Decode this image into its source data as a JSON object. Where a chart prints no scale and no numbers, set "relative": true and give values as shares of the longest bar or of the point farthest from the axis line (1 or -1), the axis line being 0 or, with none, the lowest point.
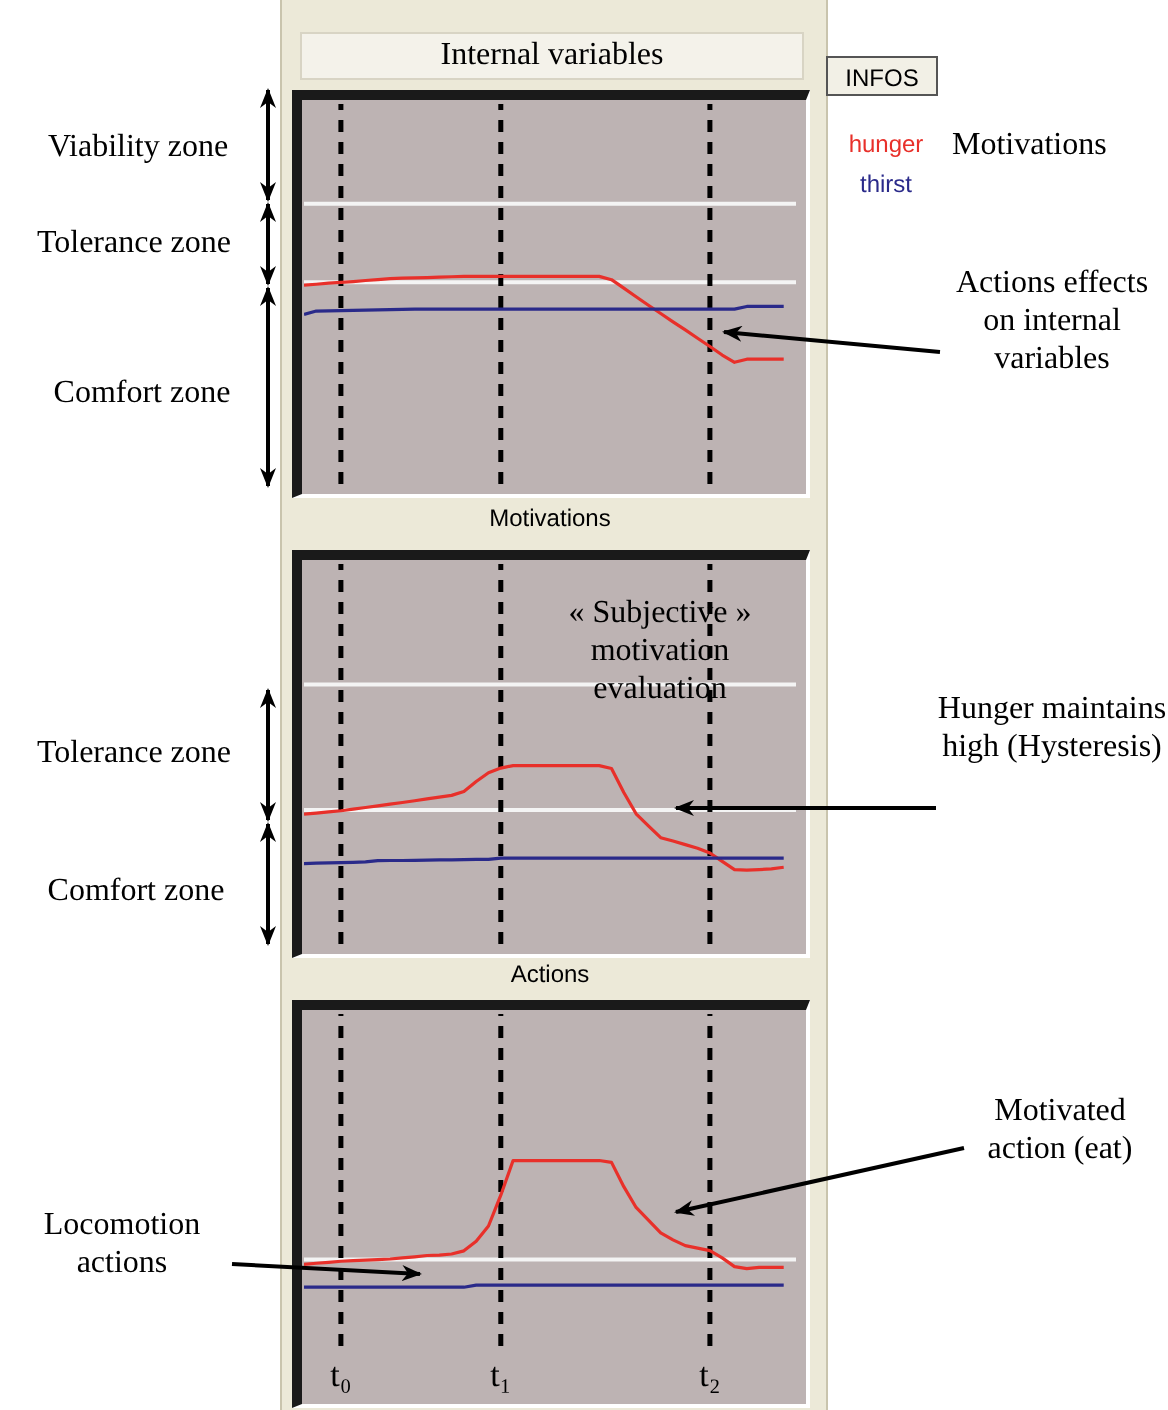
{
  "chart_data": [
    {
      "type": "line",
      "title": "Internal variables",
      "relative": true,
      "tick_labels": false,
      "marker": "none",
      "line_style": "solid",
      "categories": [
        null,
        null,
        null,
        "t₀",
        null,
        null,
        null,
        null,
        null,
        null,
        null,
        null,
        null,
        null,
        null,
        null,
        "t₁",
        null,
        null,
        null,
        null,
        null,
        null,
        null,
        null,
        null,
        null,
        null,
        null,
        null,
        null,
        null,
        null,
        "t₂",
        null,
        null,
        null,
        null,
        null,
        null,
        null
      ],
      "series": [
        {
          "name": "hunger",
          "color": "#e8302a",
          "values": [
            0.958,
            0.962,
            0.967,
            0.971,
            0.975,
            0.98,
            0.984,
            0.989,
            0.991,
            0.993,
            0.994,
            0.996,
            0.998,
            1,
            1,
            1,
            1,
            1,
            1,
            1,
            1,
            1,
            1,
            1,
            1,
            0.984,
            0.943,
            0.902,
            0.861,
            0.821,
            0.781,
            0.742,
            0.702,
            0.662,
            0.621,
            0.586,
            0.601,
            0.601,
            0.601,
            0.601,
            null
          ]
        },
        {
          "name": "thirst",
          "color": "#2a2a8a",
          "values": [
            0.817,
            0.833,
            0.834,
            0.835,
            0.836,
            0.837,
            0.839,
            0.84,
            0.841,
            0.842,
            0.842,
            0.842,
            0.842,
            0.842,
            0.842,
            0.842,
            0.842,
            0.842,
            0.842,
            0.842,
            0.842,
            0.842,
            0.842,
            0.842,
            0.842,
            0.842,
            0.842,
            0.842,
            0.842,
            0.842,
            0.842,
            0.842,
            0.842,
            0.842,
            0.842,
            0.842,
            0.855,
            0.855,
            0.855,
            0.855,
            null
          ]
        }
      ],
      "ref_lines": [
        {
          "axis": "y",
          "value": 1.35,
          "color": "#f4f4f4"
        },
        {
          "axis": "y",
          "value": 0.971,
          "color": "#f4f4f4"
        },
        {
          "axis": "x",
          "value": "t₀",
          "color": "#000000",
          "line_style": "dashed"
        },
        {
          "axis": "x",
          "value": "t₁",
          "color": "#000000",
          "line_style": "dashed"
        },
        {
          "axis": "x",
          "value": "t₂",
          "color": "#000000",
          "line_style": "dashed"
        }
      ],
      "annotations": [
        "Viability zone",
        "Tolerance zone",
        "Comfort zone",
        "Motivations",
        "Actions effects on internal variables",
        "INFOS"
      ]
    },
    {
      "type": "line",
      "title": "Motivations",
      "relative": true,
      "tick_labels": false,
      "marker": "none",
      "line_style": "solid",
      "categories": [
        null,
        null,
        null,
        "t₀",
        null,
        null,
        null,
        null,
        null,
        null,
        null,
        null,
        null,
        null,
        null,
        null,
        "t₁",
        null,
        null,
        null,
        null,
        null,
        null,
        null,
        null,
        null,
        null,
        null,
        null,
        null,
        null,
        null,
        null,
        "t₂",
        null,
        null,
        null,
        null,
        null,
        null,
        null
      ],
      "series": [
        {
          "color": "#e8302a",
          "values": [
            0.728,
            0.734,
            0.741,
            0.747,
            0.756,
            0.765,
            0.774,
            0.784,
            0.793,
            0.803,
            0.813,
            0.823,
            0.833,
            0.855,
            0.911,
            0.96,
            0.986,
            1,
            1,
            1,
            1,
            1,
            1,
            1,
            1,
            0.984,
            0.849,
            0.73,
            0.662,
            0.596,
            0.577,
            0.557,
            0.537,
            0.51,
            0.463,
            0.417,
            0.414,
            0.417,
            0.421,
            0.43,
            null
          ]
        },
        {
          "color": "#2a2a8a",
          "values": [
            0.451,
            0.453,
            0.455,
            0.456,
            0.458,
            0.46,
            0.467,
            0.468,
            0.468,
            0.469,
            0.47,
            0.471,
            0.472,
            0.473,
            0.474,
            0.474,
            0.481,
            0.481,
            0.481,
            0.481,
            0.481,
            0.481,
            0.481,
            0.481,
            0.481,
            0.481,
            0.481,
            0.481,
            0.481,
            0.481,
            0.481,
            0.481,
            0.481,
            0.481,
            0.481,
            0.481,
            0.481,
            0.481,
            0.481,
            0.481,
            null
          ]
        }
      ],
      "ref_lines": [
        {
          "axis": "y",
          "value": 1.455,
          "color": "#f4f4f4"
        },
        {
          "axis": "y",
          "value": 0.751,
          "color": "#f4f4f4"
        },
        {
          "axis": "x",
          "value": "t₀",
          "color": "#000000",
          "line_style": "dashed"
        },
        {
          "axis": "x",
          "value": "t₁",
          "color": "#000000",
          "line_style": "dashed"
        },
        {
          "axis": "x",
          "value": "t₂",
          "color": "#000000",
          "line_style": "dashed"
        }
      ],
      "annotations": [
        "Tolerance zone",
        "Comfort zone",
        "« Subjective » motivation evaluation",
        "Hunger maintains high (Hysteresis)"
      ]
    },
    {
      "type": "line",
      "title": "Actions",
      "relative": true,
      "tick_labels": "x",
      "marker": "none",
      "line_style": "solid",
      "categories": [
        null,
        null,
        null,
        "t₀",
        null,
        null,
        null,
        null,
        null,
        null,
        null,
        null,
        null,
        null,
        null,
        null,
        "t₁",
        null,
        null,
        null,
        null,
        null,
        null,
        null,
        null,
        null,
        null,
        null,
        null,
        null,
        null,
        null,
        null,
        "t₂",
        null,
        null,
        null,
        null,
        null,
        null,
        null
      ],
      "series": [
        {
          "color": "#e8302a",
          "values": [
            0.44,
            0.446,
            0.451,
            0.457,
            0.46,
            0.463,
            0.466,
            0.469,
            0.475,
            0.481,
            0.488,
            0.49,
            0.496,
            0.513,
            0.565,
            0.647,
            0.813,
            1,
            1,
            1,
            1,
            1,
            1,
            1,
            1,
            0.99,
            0.859,
            0.747,
            0.679,
            0.61,
            0.572,
            0.541,
            0.528,
            0.514,
            0.475,
            0.428,
            0.417,
            0.424,
            0.424,
            0.424,
            null
          ]
        },
        {
          "color": "#2a2a8a",
          "values": [
            0.317,
            0.317,
            0.317,
            0.317,
            0.317,
            0.317,
            0.317,
            0.317,
            0.317,
            0.317,
            0.317,
            0.317,
            0.317,
            0.317,
            0.328,
            0.328,
            0.328,
            0.328,
            0.328,
            0.328,
            0.328,
            0.328,
            0.328,
            0.328,
            0.328,
            0.328,
            0.328,
            0.328,
            0.328,
            0.328,
            0.328,
            0.328,
            0.328,
            0.328,
            0.328,
            0.328,
            0.328,
            0.328,
            0.328,
            0.328,
            null
          ]
        }
      ],
      "ref_lines": [
        {
          "axis": "y",
          "value": 0.466,
          "color": "#f4f4f4"
        },
        {
          "axis": "x",
          "value": "t₀",
          "color": "#000000",
          "line_style": "dashed"
        },
        {
          "axis": "x",
          "value": "t₁",
          "color": "#000000",
          "line_style": "dashed"
        },
        {
          "axis": "x",
          "value": "t₂",
          "color": "#000000",
          "line_style": "dashed"
        }
      ],
      "annotations": [
        "Locomotion actions",
        "Motivated action (eat)"
      ]
    }
  ]
}
